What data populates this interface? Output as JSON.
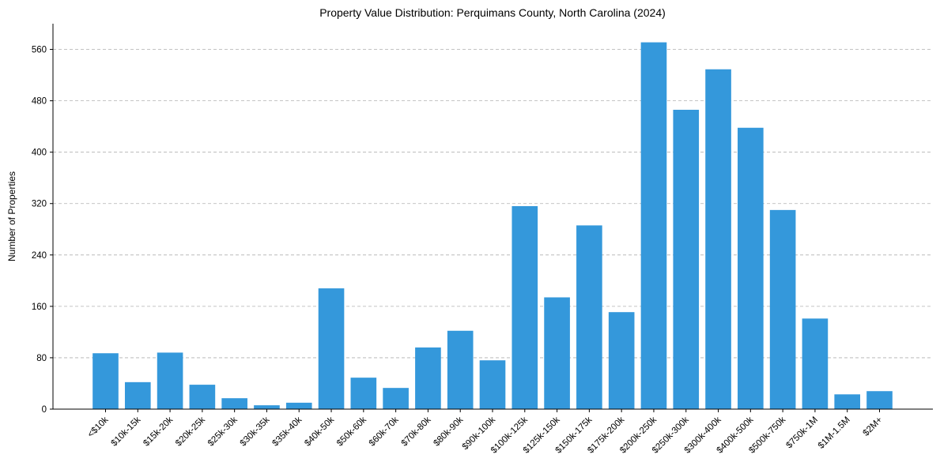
{
  "chart_data": {
    "type": "bar",
    "title": "Property Value Distribution: Perquimans County, North Carolina (2024)",
    "xlabel": "",
    "ylabel": "Number of Properties",
    "categories": [
      "<$10k",
      "$10k-15k",
      "$15k-20k",
      "$20k-25k",
      "$25k-30k",
      "$30k-35k",
      "$35k-40k",
      "$40k-50k",
      "$50k-60k",
      "$60k-70k",
      "$70k-80k",
      "$80k-90k",
      "$90k-100k",
      "$100k-125k",
      "$125k-150k",
      "$150k-175k",
      "$175k-200k",
      "$200k-250k",
      "$250k-300k",
      "$300k-400k",
      "$400k-500k",
      "$500k-750k",
      "$750k-1M",
      "$1M-1.5M",
      "$2M+"
    ],
    "values": [
      87,
      42,
      88,
      38,
      17,
      6,
      10,
      188,
      49,
      33,
      96,
      122,
      76,
      316,
      174,
      286,
      151,
      571,
      466,
      529,
      438,
      310,
      141,
      23,
      28
    ],
    "yticks": [
      0,
      80,
      160,
      240,
      320,
      400,
      480,
      560
    ],
    "ylim": [
      0,
      600
    ],
    "grid": "y-dashed",
    "bar_color": "#3498db"
  }
}
